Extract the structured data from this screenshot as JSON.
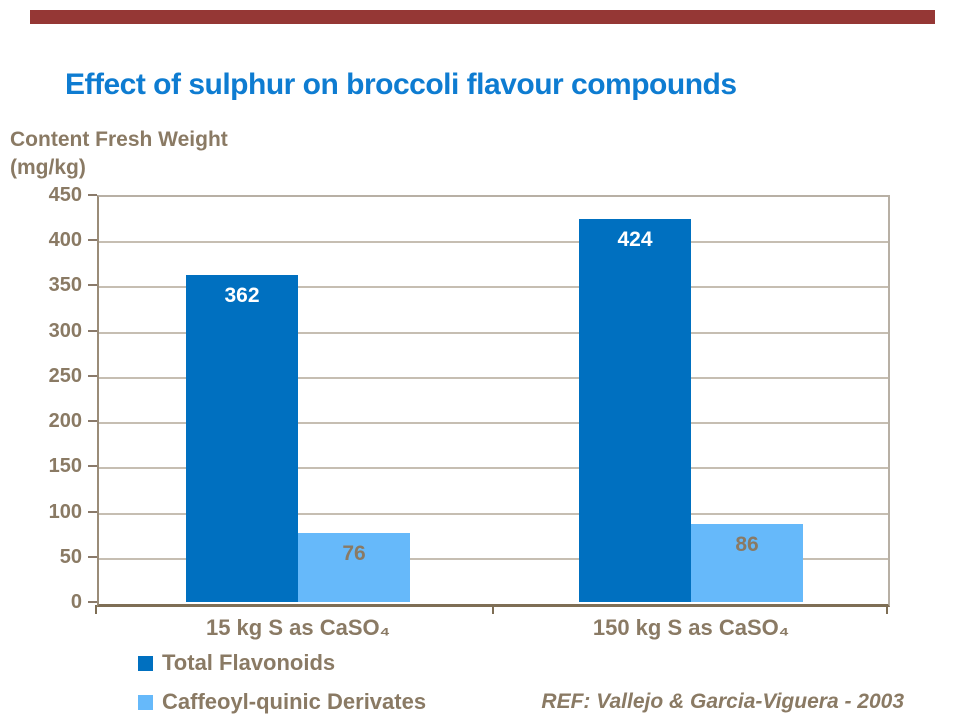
{
  "slide": {
    "title": "Effect of sulphur on broccoli flavour compounds",
    "ref_note": "REF: Vallejo & Garcia-Viguera - 2003"
  },
  "colors": {
    "accent_bar": "#953735",
    "title_blue": "#0e7cd1",
    "taupe_text": "#8a7a64",
    "gridline": "#c6beb2",
    "axis_dark": "#7e6e55",
    "series_dark_blue": "#0070c0",
    "series_light_blue": "#66b9fa"
  },
  "chart_data": {
    "type": "bar",
    "title": "Effect of sulphur on broccoli flavour compounds",
    "ylabel": "Content Fresh Weight (mg/kg)",
    "ylabel_lines": [
      "Content Fresh Weight",
      "(mg/kg)"
    ],
    "categories": [
      "15 kg S as CaSO₄",
      "150 kg S as CaSO₄"
    ],
    "series": [
      {
        "name": "Total Flavonoids",
        "color": "#0070c0",
        "values": [
          362,
          424
        ],
        "label_color": "#ffffff"
      },
      {
        "name": "Caffeoyl-quinic Derivates",
        "color": "#66b9fa",
        "values": [
          76,
          86
        ],
        "label_color": "#8a7a64"
      }
    ],
    "ylim": [
      0,
      450
    ],
    "ytick_step": 50,
    "yticks": [
      450,
      400,
      350,
      300,
      250,
      200,
      150,
      100,
      50,
      0
    ],
    "grid": true,
    "legend_position": "bottom-left",
    "xlabel": ""
  }
}
